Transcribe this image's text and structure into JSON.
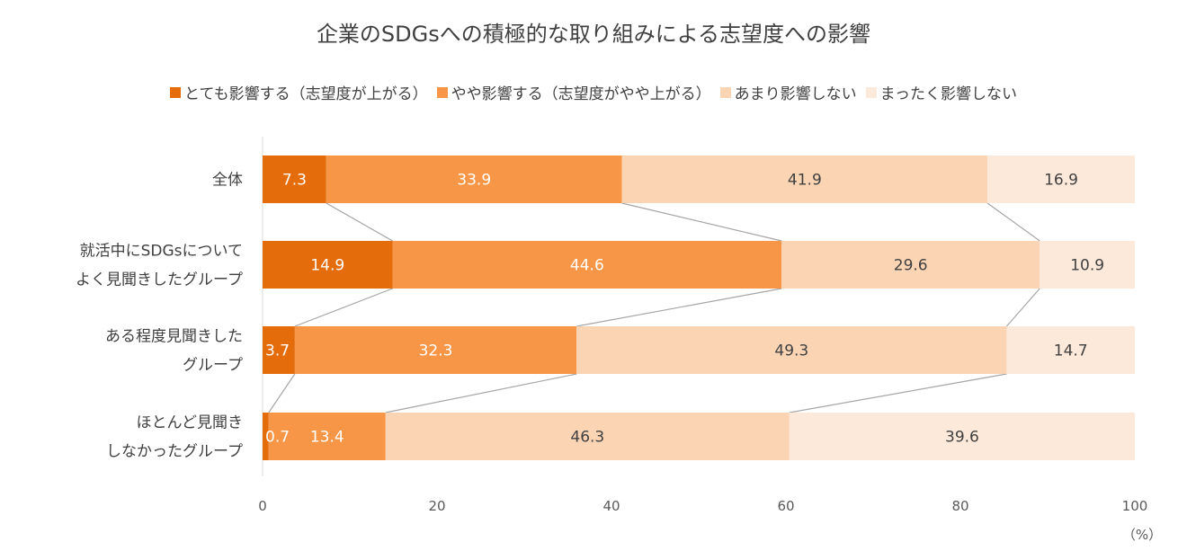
{
  "chart_data": {
    "type": "bar",
    "orientation": "horizontal",
    "stacked": "percent",
    "title": "企業のSDGsへの積極的な取り組みによる志望度への影響",
    "categories": [
      [
        "全体"
      ],
      [
        "就活中にSDGsについて",
        "よく見聞きしたグループ"
      ],
      [
        "ある程度見聞きした",
        "グループ"
      ],
      [
        "ほとんど見聞き",
        "しなかったグループ"
      ]
    ],
    "series": [
      {
        "name": "とても影響する（志望度が上がる）",
        "color": "#E46C0A",
        "label_color": "#ffffff",
        "values": [
          7.3,
          14.9,
          3.7,
          0.7
        ]
      },
      {
        "name": "やや影響する（志望度がやや上がる）",
        "color": "#F79646",
        "label_color": "#ffffff",
        "values": [
          33.9,
          44.6,
          32.3,
          13.4
        ]
      },
      {
        "name": "あまり影響しない",
        "color": "#FBD4B4",
        "label_color": "#404040",
        "values": [
          41.9,
          29.6,
          49.3,
          46.3
        ]
      },
      {
        "name": "まったく影響しない",
        "color": "#FDE9D9",
        "label_color": "#404040",
        "values": [
          16.9,
          10.9,
          14.7,
          39.6
        ]
      }
    ],
    "xlim": [
      0,
      100
    ],
    "xticks": [
      "0",
      "20",
      "40",
      "60",
      "80",
      "100"
    ],
    "xunit": "（%）",
    "series_lines": true,
    "legend_position": "top",
    "line_color": "#A6A6A6",
    "axis_color": "#D9D9D9"
  }
}
